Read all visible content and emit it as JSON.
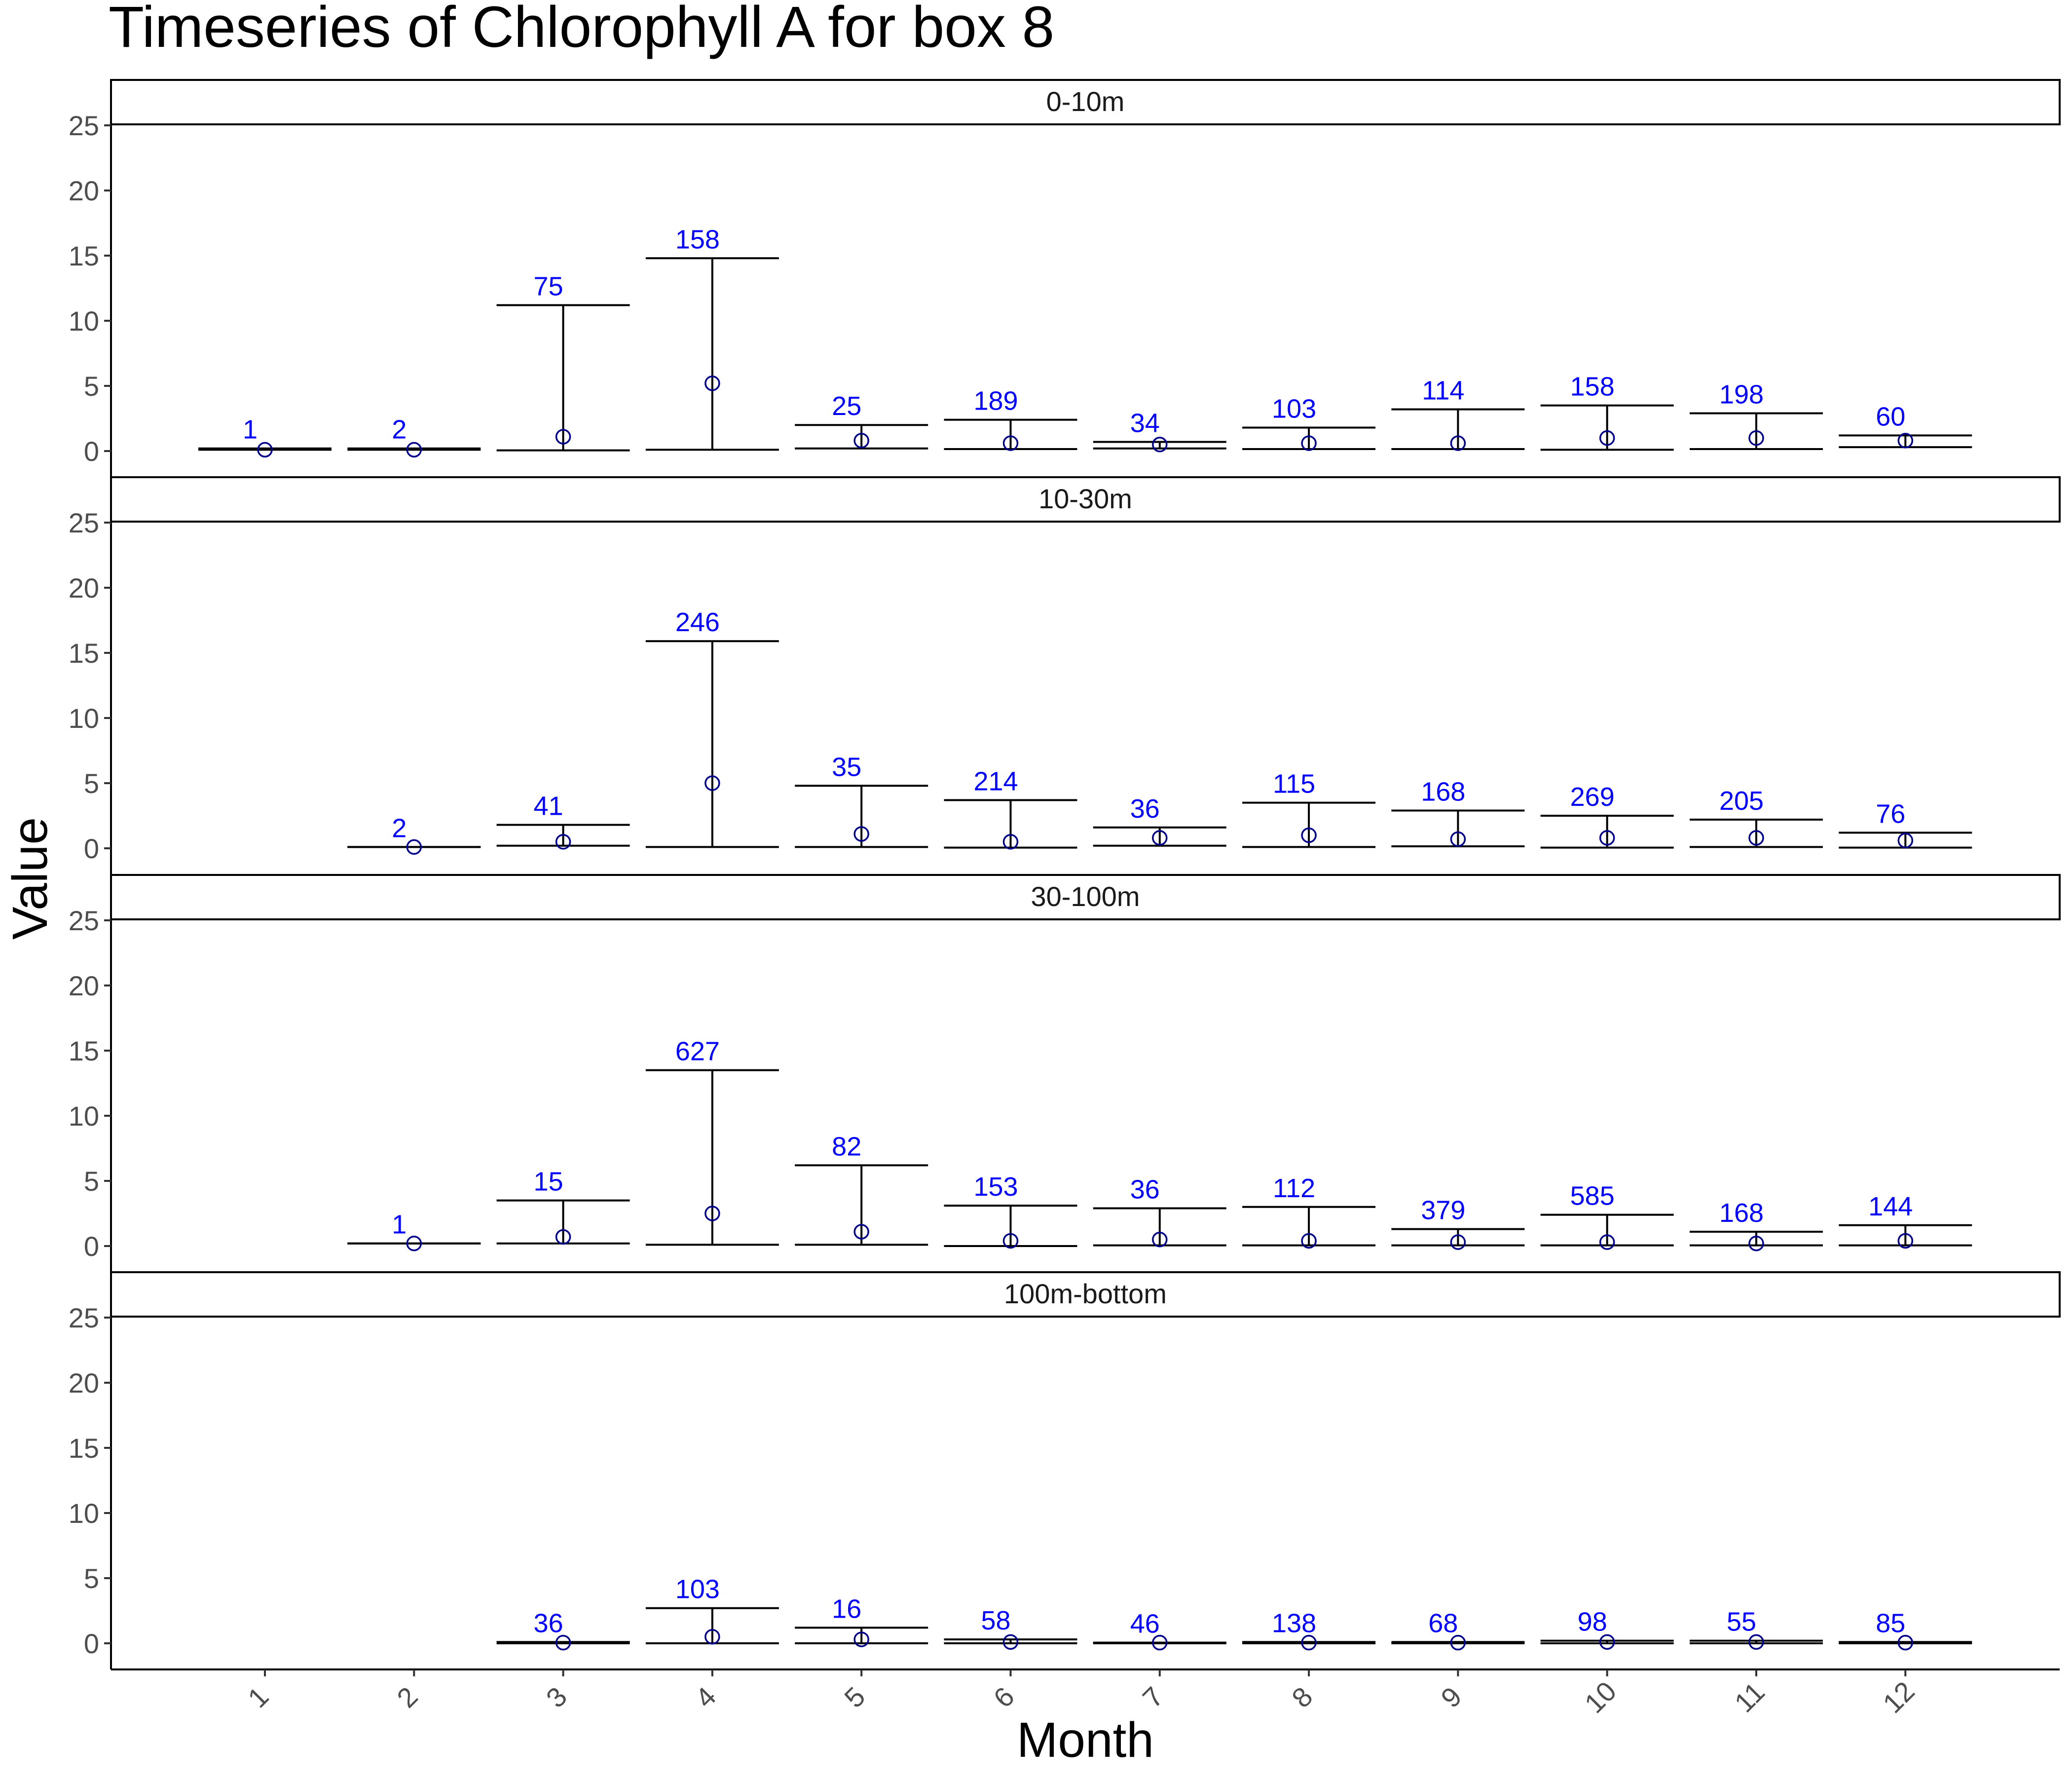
{
  "title": "Timeseries of  Chlorophyll A  for box  8",
  "chart_data": {
    "type": "errorbar",
    "title": "Timeseries of  Chlorophyll A  for box  8",
    "xlabel": "Month",
    "ylabel": "Value",
    "x": [
      1,
      2,
      3,
      4,
      5,
      6,
      7,
      8,
      9,
      10,
      11,
      12
    ],
    "x_tick_labels": [
      "1",
      "2",
      "3",
      "4",
      "5",
      "6",
      "7",
      "8",
      "9",
      "10",
      "11",
      "12"
    ],
    "ylim": [
      0,
      25
    ],
    "y_ticks": [
      0,
      5,
      10,
      15,
      20,
      25
    ],
    "grid": false,
    "label_color": "#0000FF",
    "point_color": "#00008B",
    "panels": [
      {
        "name": "0-10m",
        "months": [
          1,
          2,
          3,
          4,
          5,
          6,
          7,
          8,
          9,
          10,
          11,
          12
        ],
        "mean": [
          0.1,
          0.1,
          1.1,
          5.2,
          0.8,
          0.6,
          0.5,
          0.6,
          0.6,
          1.0,
          1.0,
          0.8
        ],
        "min": [
          0.1,
          0.1,
          0.05,
          0.1,
          0.2,
          0.15,
          0.2,
          0.15,
          0.15,
          0.1,
          0.15,
          0.3
        ],
        "max": [
          0.2,
          0.2,
          11.2,
          14.8,
          2.0,
          2.4,
          0.7,
          1.8,
          3.2,
          3.5,
          2.9,
          1.2
        ],
        "n": [
          "1",
          "2",
          "75",
          "158",
          "25",
          "189",
          "34",
          "103",
          "114",
          "158",
          "198",
          "60"
        ]
      },
      {
        "name": "10-30m",
        "months": [
          2,
          3,
          4,
          5,
          6,
          7,
          8,
          9,
          10,
          11,
          12
        ],
        "mean": [
          0.1,
          0.5,
          5.0,
          1.1,
          0.5,
          0.8,
          1.0,
          0.7,
          0.8,
          0.8,
          0.6
        ],
        "min": [
          0.1,
          0.2,
          0.1,
          0.1,
          0.05,
          0.2,
          0.1,
          0.15,
          0.05,
          0.1,
          0.05
        ],
        "max": [
          0.1,
          1.8,
          15.9,
          4.8,
          3.7,
          1.6,
          3.5,
          2.9,
          2.5,
          2.2,
          1.2
        ],
        "n": [
          "2",
          "41",
          "246",
          "35",
          "214",
          "36",
          "115",
          "168",
          "269",
          "205",
          "76"
        ]
      },
      {
        "name": "30-100m",
        "months": [
          2,
          3,
          4,
          5,
          6,
          7,
          8,
          9,
          10,
          11,
          12
        ],
        "mean": [
          0.2,
          0.7,
          2.5,
          1.1,
          0.4,
          0.5,
          0.4,
          0.3,
          0.3,
          0.2,
          0.4
        ],
        "min": [
          0.2,
          0.2,
          0.1,
          0.1,
          0.0,
          0.05,
          0.05,
          0.05,
          0.05,
          0.05,
          0.05
        ],
        "max": [
          0.2,
          3.5,
          13.5,
          6.2,
          3.1,
          2.9,
          3.0,
          1.3,
          2.4,
          1.1,
          1.6
        ],
        "n": [
          "1",
          "15",
          "627",
          "82",
          "153",
          "36",
          "112",
          "379",
          "585",
          "168",
          "144"
        ]
      },
      {
        "name": "100m-bottom",
        "months": [
          3,
          4,
          5,
          6,
          7,
          8,
          9,
          10,
          11,
          12
        ],
        "mean": [
          0.05,
          0.5,
          0.3,
          0.1,
          0.05,
          0.05,
          0.05,
          0.1,
          0.1,
          0.05
        ],
        "min": [
          0.0,
          0.0,
          0.0,
          0.0,
          0.0,
          0.0,
          0.0,
          0.0,
          0.0,
          0.0
        ],
        "max": [
          0.1,
          2.7,
          1.2,
          0.3,
          0.05,
          0.1,
          0.1,
          0.2,
          0.2,
          0.1
        ],
        "n": [
          "36",
          "103",
          "16",
          "58",
          "46",
          "138",
          "68",
          "98",
          "55",
          "85"
        ]
      }
    ]
  }
}
